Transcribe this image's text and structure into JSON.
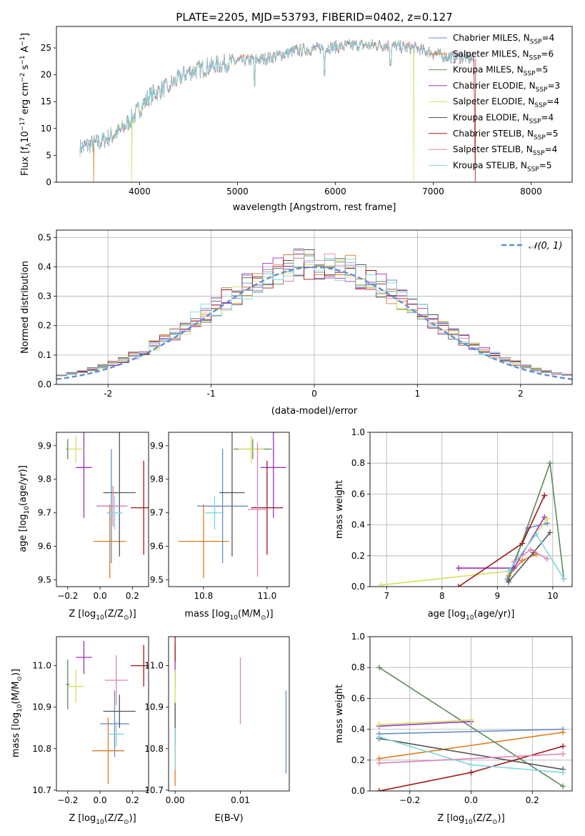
{
  "title": "PLATE=2205, MJD=53793, FIBERID=0402, z=0.127",
  "colors": [
    "#6a8cc7",
    "#e07a1f",
    "#5c8a5e",
    "#9b30c0",
    "#d4e05a",
    "#555555",
    "#a01515",
    "#e081b5",
    "#7fd6dc"
  ],
  "chart_data": [
    {
      "type": "line",
      "title": "PLATE=2205, MJD=53793, FIBERID=0402, z=0.127",
      "xlabel": "wavelength [Angstrom, rest frame]",
      "ylabel": "Flux [f_λ10^-17 erg cm^-2 s^-1 A^-1]",
      "xlim": [
        3150,
        8420
      ],
      "ylim": [
        0,
        29
      ],
      "xticks": [
        4000,
        5000,
        6000,
        7000,
        8000
      ],
      "yticks": [
        0,
        5,
        10,
        15,
        20,
        25
      ],
      "legend_position": "upper-right",
      "series": [
        {
          "name": "Chabrier MILES, N_SSP=4"
        },
        {
          "name": "Salpeter MILES, N_SSP=6"
        },
        {
          "name": "Kroupa MILES, N_SSP=5"
        },
        {
          "name": "Chabrier ELODIE, N_SSP=3"
        },
        {
          "name": "Salpeter ELODIE, N_SSP=4"
        },
        {
          "name": "Kroupa ELODIE, N_SSP=4"
        },
        {
          "name": "Chabrier STELIB, N_SSP=5"
        },
        {
          "name": "Salpeter STELIB, N_SSP=4"
        },
        {
          "name": "Kroupa STELIB, N_SSP=5"
        }
      ],
      "continuum": {
        "x": [
          3400,
          3600,
          3800,
          3950,
          4100,
          4300,
          4500,
          4700,
          5000,
          5300,
          5600,
          5900,
          6200,
          6500,
          6800,
          7100,
          7400
        ],
        "y": [
          6.5,
          7.5,
          9.5,
          12.5,
          16,
          18,
          20.5,
          21.5,
          22.5,
          23,
          24.5,
          25,
          25.5,
          25.5,
          25,
          23.5,
          23
        ]
      },
      "dips": [
        {
          "x": 4300,
          "y": 17
        },
        {
          "x": 5175,
          "y": 18
        },
        {
          "x": 5890,
          "y": 20
        },
        {
          "x": 6563,
          "y": 22
        }
      ],
      "model_cutoffs": {
        "segments": [
          {
            "x": 3530,
            "series": 1
          },
          {
            "x": 3920,
            "series": 4
          },
          {
            "x": 6800,
            "series": 4
          },
          {
            "x": 7430,
            "series": 6
          }
        ]
      }
    },
    {
      "type": "step",
      "xlabel": "(data-model)/error",
      "ylabel": "Normed distribution",
      "xlim": [
        -2.5,
        2.5
      ],
      "ylim": [
        0,
        0.525
      ],
      "xticks": [
        -2,
        -1,
        0,
        1,
        2
      ],
      "yticks": [
        0.0,
        0.1,
        0.2,
        0.3,
        0.4,
        0.5
      ],
      "grid": true,
      "legend": "𝒩(0, 1)",
      "legend_position": "upper-right",
      "gaussian": {
        "mu": 0,
        "sigma": 1
      }
    },
    {
      "type": "scatter",
      "xlabel": "Z [log10(Z/Z⊙)]",
      "ylabel": "age [log10(age/yr)]",
      "xlim": [
        -0.27,
        0.3
      ],
      "ylim": [
        9.48,
        9.94
      ],
      "xticks": [
        -0.2,
        0.0,
        0.2
      ],
      "yticks": [
        9.5,
        9.6,
        9.7,
        9.8,
        9.9
      ],
      "points": [
        {
          "x": 0.07,
          "y": 9.72,
          "xerr": 0.09,
          "yerr": 0.17,
          "c": 0
        },
        {
          "x": 0.06,
          "y": 9.615,
          "xerr": 0.1,
          "yerr": 0.11,
          "c": 1
        },
        {
          "x": -0.2,
          "y": 9.89,
          "xerr": 0.01,
          "yerr": 0.03,
          "c": 2
        },
        {
          "x": -0.1,
          "y": 9.835,
          "xerr": 0.05,
          "yerr": 0.15,
          "c": 3
        },
        {
          "x": -0.15,
          "y": 9.89,
          "xerr": 0.05,
          "yerr": 0.04,
          "c": 4
        },
        {
          "x": 0.12,
          "y": 9.76,
          "xerr": 0.1,
          "yerr": 0.19,
          "c": 5
        },
        {
          "x": 0.27,
          "y": 9.715,
          "xerr": 0.08,
          "yerr": 0.14,
          "c": 6
        },
        {
          "x": 0.08,
          "y": 9.72,
          "xerr": 0.09,
          "yerr": 0.06,
          "c": 7
        },
        {
          "x": 0.09,
          "y": 9.7,
          "xerr": 0.05,
          "yerr": 0.05,
          "c": 8
        }
      ]
    },
    {
      "type": "scatter",
      "xlabel": "mass [log10(M/M⊙)]",
      "ylabel": "",
      "xlim": [
        10.69,
        11.07
      ],
      "ylim": [
        9.48,
        9.94
      ],
      "xticks": [
        10.8,
        11.0
      ],
      "yticks": [
        9.5,
        9.6,
        9.7,
        9.8,
        9.9
      ],
      "points": [
        {
          "x": 10.86,
          "y": 9.72,
          "xerr": 0.08,
          "yerr": 0.17,
          "c": 0
        },
        {
          "x": 10.8,
          "y": 9.615,
          "xerr": 0.08,
          "yerr": 0.11,
          "c": 1
        },
        {
          "x": 10.955,
          "y": 9.89,
          "xerr": 0.06,
          "yerr": 0.03,
          "c": 2
        },
        {
          "x": 11.02,
          "y": 9.835,
          "xerr": 0.04,
          "yerr": 0.15,
          "c": 3
        },
        {
          "x": 10.95,
          "y": 9.89,
          "xerr": 0.04,
          "yerr": 0.04,
          "c": 4
        },
        {
          "x": 10.89,
          "y": 9.76,
          "xerr": 0.04,
          "yerr": 0.19,
          "c": 5
        },
        {
          "x": 11.0,
          "y": 9.715,
          "xerr": 0.05,
          "yerr": 0.14,
          "c": 6
        },
        {
          "x": 10.97,
          "y": 9.71,
          "xerr": 0.03,
          "yerr": 0.2,
          "c": 7
        },
        {
          "x": 10.835,
          "y": 9.7,
          "xerr": 0.03,
          "yerr": 0.05,
          "c": 8
        }
      ]
    },
    {
      "type": "line",
      "xlabel": "age [log10(age/yr)]",
      "ylabel": "mass weight",
      "xlim": [
        6.7,
        10.35
      ],
      "ylim": [
        0,
        1.0
      ],
      "xticks": [
        7,
        8,
        9,
        10
      ],
      "yticks": [
        0.0,
        0.2,
        0.4,
        0.6,
        0.8,
        1.0
      ],
      "grid": true,
      "series": [
        {
          "c": 0,
          "x": [
            9.18,
            9.55,
            9.9
          ],
          "y": [
            0.05,
            0.38,
            0.41
          ]
        },
        {
          "c": 1,
          "x": [
            9.2,
            9.45,
            9.7
          ],
          "y": [
            0.07,
            0.17,
            0.21
          ]
        },
        {
          "c": 2,
          "x": [
            9.2,
            9.95,
            10.2
          ],
          "y": [
            0.04,
            0.8,
            0.05
          ]
        },
        {
          "c": 3,
          "x": [
            8.3,
            9.3,
            9.85
          ],
          "y": [
            0.12,
            0.12,
            0.45
          ]
        },
        {
          "c": 4,
          "x": [
            6.9,
            9.2,
            9.9
          ],
          "y": [
            0.01,
            0.1,
            0.44
          ]
        },
        {
          "c": 5,
          "x": [
            9.2,
            9.65,
            9.95
          ],
          "y": [
            0.03,
            0.22,
            0.35
          ]
        },
        {
          "c": 6,
          "x": [
            8.3,
            9.45,
            9.85
          ],
          "y": [
            0.0,
            0.28,
            0.59
          ]
        },
        {
          "c": 7,
          "x": [
            9.3,
            9.6,
            9.9
          ],
          "y": [
            0.16,
            0.24,
            0.18
          ]
        },
        {
          "c": 8,
          "x": [
            9.2,
            9.7,
            10.2
          ],
          "y": [
            0.1,
            0.34,
            0.05
          ]
        }
      ]
    },
    {
      "type": "scatter",
      "xlabel": "Z [log10(Z/Z⊙)]",
      "ylabel": "mass [log10(M/M⊙)]",
      "xlim": [
        -0.27,
        0.3
      ],
      "ylim": [
        10.698,
        11.07
      ],
      "xticks": [
        -0.2,
        0.0,
        0.2
      ],
      "yticks": [
        10.7,
        10.8,
        10.9,
        11.0
      ],
      "points": [
        {
          "x": 0.09,
          "y": 10.86,
          "xerr": 0.09,
          "yerr": 0.08,
          "c": 0
        },
        {
          "x": 0.05,
          "y": 10.795,
          "xerr": 0.1,
          "yerr": 0.08,
          "c": 1
        },
        {
          "x": -0.2,
          "y": 10.955,
          "xerr": 0.01,
          "yerr": 0.06,
          "c": 2
        },
        {
          "x": -0.1,
          "y": 11.02,
          "xerr": 0.05,
          "yerr": 0.04,
          "c": 3
        },
        {
          "x": -0.15,
          "y": 10.95,
          "xerr": 0.05,
          "yerr": 0.04,
          "c": 4
        },
        {
          "x": 0.12,
          "y": 10.89,
          "xerr": 0.1,
          "yerr": 0.04,
          "c": 5
        },
        {
          "x": 0.27,
          "y": 11.0,
          "xerr": 0.08,
          "yerr": 0.05,
          "c": 6
        },
        {
          "x": 0.1,
          "y": 10.965,
          "xerr": 0.07,
          "yerr": 0.06,
          "c": 7
        },
        {
          "x": 0.1,
          "y": 10.835,
          "xerr": 0.05,
          "yerr": 0.03,
          "c": 8
        }
      ]
    },
    {
      "type": "scatter",
      "xlabel": "E(B-V)",
      "ylabel": "",
      "xlim": [
        -0.001,
        0.0175
      ],
      "ylim": [
        10.698,
        11.07
      ],
      "xticks": [
        0.0,
        0.01
      ],
      "yticks": [
        10.7,
        10.8,
        10.9,
        11.0
      ],
      "points": [
        {
          "x": 0.017,
          "y": 10.84,
          "yerr": 0.1,
          "c": 0
        },
        {
          "x": 0.0,
          "y": 10.78,
          "yerr": 0.07,
          "c": 1
        },
        {
          "x": 0.0,
          "y": 10.86,
          "yerr": 0.05,
          "c": 2
        },
        {
          "x": 0.0,
          "y": 11.0,
          "yerr": 0.05,
          "c": 3
        },
        {
          "x": 0.0,
          "y": 10.95,
          "yerr": 0.04,
          "c": 4
        },
        {
          "x": 0.0,
          "y": 10.86,
          "yerr": 0.05,
          "c": 5
        },
        {
          "x": 0.0,
          "y": 11.08,
          "yerr": 0.07,
          "c": 6
        },
        {
          "x": 0.01,
          "y": 10.94,
          "yerr": 0.08,
          "c": 7
        },
        {
          "x": 0.0,
          "y": 10.8,
          "yerr": 0.05,
          "c": 8
        }
      ]
    },
    {
      "type": "line",
      "xlabel": "Z [log10(Z/Z⊙)]",
      "ylabel": "mass weight",
      "xlim": [
        -0.33,
        0.33
      ],
      "ylim": [
        0,
        1.0
      ],
      "xticks": [
        -0.2,
        0.0,
        0.2
      ],
      "yticks": [
        0.0,
        0.2,
        0.4,
        0.6,
        0.8,
        1.0
      ],
      "grid": true,
      "series": [
        {
          "c": 0,
          "x": [
            -0.3,
            0.3
          ],
          "y": [
            0.37,
            0.4
          ]
        },
        {
          "c": 1,
          "x": [
            -0.3,
            0.3
          ],
          "y": [
            0.21,
            0.38
          ]
        },
        {
          "c": 2,
          "x": [
            -0.3,
            0.3
          ],
          "y": [
            0.8,
            0.03
          ]
        },
        {
          "c": 3,
          "x": [
            -0.3,
            0.0
          ],
          "y": [
            0.42,
            0.45
          ]
        },
        {
          "c": 4,
          "x": [
            -0.3,
            0.0
          ],
          "y": [
            0.43,
            0.46
          ]
        },
        {
          "c": 5,
          "x": [
            -0.3,
            0.3
          ],
          "y": [
            0.34,
            0.14
          ]
        },
        {
          "c": 6,
          "x": [
            -0.3,
            0.0,
            0.3
          ],
          "y": [
            0.0,
            0.12,
            0.29
          ]
        },
        {
          "c": 7,
          "x": [
            -0.3,
            0.3
          ],
          "y": [
            0.18,
            0.24
          ]
        },
        {
          "c": 8,
          "x": [
            -0.3,
            0.0,
            0.3
          ],
          "y": [
            0.35,
            0.17,
            0.12
          ]
        }
      ]
    }
  ]
}
